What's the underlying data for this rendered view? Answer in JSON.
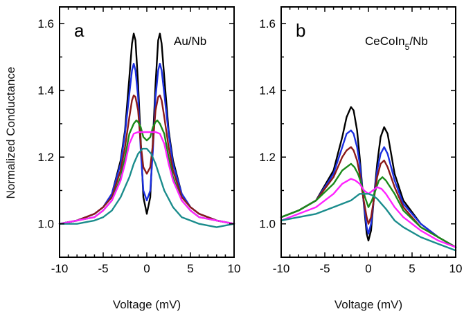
{
  "figure": {
    "ylabel": "Normalized Conductance"
  },
  "chart_data": [
    {
      "type": "line",
      "panel_letter": "a",
      "label_main": "Au/Nb",
      "label_sub": "",
      "label_tail": "",
      "xlabel": "Voltage (mV)",
      "ylabel": "Normalized Conductance",
      "xlim": [
        -10,
        10
      ],
      "ylim": [
        0.9,
        1.65
      ],
      "xticks": [
        -10,
        -5,
        0,
        5,
        10
      ],
      "yticks": [
        1.0,
        1.2,
        1.4,
        1.6
      ],
      "grid": false,
      "series": [
        {
          "color": "#000000",
          "x": [
            -10,
            -8,
            -6,
            -5,
            -4,
            -3,
            -2.5,
            -2,
            -1.7,
            -1.5,
            -1.3,
            -1,
            -0.7,
            -0.4,
            0,
            0.4,
            0.7,
            1,
            1.3,
            1.5,
            1.7,
            2,
            2.5,
            3,
            4,
            5,
            6,
            8,
            10
          ],
          "y": [
            1.0,
            1.01,
            1.03,
            1.05,
            1.09,
            1.19,
            1.28,
            1.44,
            1.54,
            1.57,
            1.55,
            1.42,
            1.25,
            1.08,
            1.03,
            1.08,
            1.25,
            1.42,
            1.55,
            1.57,
            1.54,
            1.44,
            1.28,
            1.19,
            1.09,
            1.05,
            1.03,
            1.01,
            1.0
          ]
        },
        {
          "color": "#1a2ee0",
          "x": [
            -10,
            -8,
            -6,
            -5,
            -4,
            -3,
            -2.5,
            -2,
            -1.7,
            -1.5,
            -1.3,
            -1,
            -0.7,
            -0.4,
            0,
            0.4,
            0.7,
            1,
            1.3,
            1.5,
            1.7,
            2,
            2.5,
            3,
            4,
            5,
            6,
            8,
            10
          ],
          "y": [
            1.0,
            1.01,
            1.03,
            1.05,
            1.09,
            1.18,
            1.27,
            1.39,
            1.46,
            1.48,
            1.46,
            1.38,
            1.22,
            1.1,
            1.07,
            1.1,
            1.22,
            1.38,
            1.46,
            1.48,
            1.46,
            1.39,
            1.27,
            1.18,
            1.09,
            1.05,
            1.03,
            1.01,
            1.0
          ]
        },
        {
          "color": "#8b1a1a",
          "x": [
            -10,
            -8,
            -6,
            -5,
            -4,
            -3,
            -2.5,
            -2,
            -1.7,
            -1.5,
            -1.3,
            -1,
            -0.7,
            -0.4,
            0,
            0.4,
            0.7,
            1,
            1.3,
            1.5,
            1.7,
            2,
            2.5,
            3,
            4,
            5,
            6,
            8,
            10
          ],
          "y": [
            1.0,
            1.01,
            1.03,
            1.05,
            1.08,
            1.16,
            1.23,
            1.32,
            1.37,
            1.385,
            1.38,
            1.34,
            1.24,
            1.17,
            1.15,
            1.17,
            1.24,
            1.34,
            1.38,
            1.385,
            1.37,
            1.32,
            1.23,
            1.16,
            1.08,
            1.05,
            1.03,
            1.01,
            1.0
          ]
        },
        {
          "color": "#1a8a1a",
          "x": [
            -10,
            -8,
            -6,
            -5,
            -4,
            -3,
            -2.5,
            -2,
            -1.5,
            -1.2,
            -1,
            -0.7,
            -0.4,
            0,
            0.4,
            0.7,
            1,
            1.2,
            1.5,
            2,
            2.5,
            3,
            4,
            5,
            6,
            8,
            10
          ],
          "y": [
            1.0,
            1.01,
            1.02,
            1.04,
            1.07,
            1.14,
            1.2,
            1.27,
            1.3,
            1.31,
            1.305,
            1.29,
            1.26,
            1.25,
            1.26,
            1.29,
            1.305,
            1.31,
            1.3,
            1.27,
            1.2,
            1.14,
            1.07,
            1.04,
            1.02,
            1.01,
            1.0
          ]
        },
        {
          "color": "#ff22ff",
          "x": [
            -10,
            -8,
            -6,
            -5,
            -4,
            -3,
            -2.5,
            -2,
            -1.5,
            -1,
            -0.5,
            0,
            0.5,
            1,
            1.5,
            2,
            2.5,
            3,
            4,
            5,
            6,
            8,
            10
          ],
          "y": [
            1.0,
            1.01,
            1.02,
            1.04,
            1.07,
            1.13,
            1.18,
            1.24,
            1.27,
            1.275,
            1.275,
            1.275,
            1.275,
            1.275,
            1.27,
            1.24,
            1.18,
            1.13,
            1.07,
            1.04,
            1.02,
            1.01,
            1.0
          ]
        },
        {
          "color": "#1a8c8c",
          "x": [
            -10,
            -8,
            -6,
            -5,
            -4,
            -3,
            -2,
            -1.5,
            -1,
            -0.5,
            0,
            0.5,
            1,
            1.5,
            2,
            3,
            4,
            5,
            6,
            8,
            10
          ],
          "y": [
            1.0,
            1.0,
            1.01,
            1.02,
            1.04,
            1.08,
            1.14,
            1.18,
            1.21,
            1.225,
            1.225,
            1.21,
            1.18,
            1.14,
            1.1,
            1.05,
            1.02,
            1.01,
            1.0,
            0.99,
            1.0
          ]
        }
      ]
    },
    {
      "type": "line",
      "panel_letter": "b",
      "label_main": "CeCoIn",
      "label_sub": "5",
      "label_tail": "/Nb",
      "xlabel": "Voltage (mV)",
      "ylabel": "",
      "xlim": [
        -10,
        10
      ],
      "ylim": [
        0.9,
        1.65
      ],
      "xticks": [
        -10,
        -5,
        0,
        5,
        10
      ],
      "yticks": [
        1.0,
        1.2,
        1.4,
        1.6
      ],
      "grid": false,
      "series": [
        {
          "color": "#000000",
          "x": [
            -10,
            -8,
            -6,
            -4,
            -3,
            -2.5,
            -2,
            -1.7,
            -1.3,
            -1,
            -0.6,
            -0.2,
            0,
            0.3,
            0.6,
            1,
            1.4,
            1.8,
            2.2,
            2.6,
            3,
            4,
            6,
            8,
            10
          ],
          "y": [
            1.02,
            1.04,
            1.07,
            1.16,
            1.26,
            1.32,
            1.35,
            1.34,
            1.28,
            1.2,
            1.08,
            0.97,
            0.95,
            0.98,
            1.07,
            1.18,
            1.26,
            1.29,
            1.27,
            1.21,
            1.15,
            1.07,
            1.0,
            0.96,
            0.93
          ]
        },
        {
          "color": "#1a2ee0",
          "x": [
            -10,
            -8,
            -6,
            -4,
            -3,
            -2.5,
            -2,
            -1.7,
            -1.3,
            -1,
            -0.6,
            -0.2,
            0,
            0.3,
            0.6,
            1,
            1.4,
            1.8,
            2.2,
            2.6,
            3,
            4,
            6,
            8,
            10
          ],
          "y": [
            1.02,
            1.04,
            1.07,
            1.15,
            1.23,
            1.27,
            1.28,
            1.27,
            1.23,
            1.18,
            1.08,
            0.99,
            0.97,
            1.0,
            1.07,
            1.16,
            1.21,
            1.23,
            1.21,
            1.17,
            1.13,
            1.06,
            1.0,
            0.96,
            0.93
          ]
        },
        {
          "color": "#8b1a1a",
          "x": [
            -10,
            -8,
            -6,
            -4,
            -3,
            -2.5,
            -2,
            -1.7,
            -1.3,
            -1,
            -0.6,
            -0.2,
            0,
            0.3,
            0.6,
            1,
            1.4,
            1.8,
            2.2,
            2.6,
            3,
            4,
            6,
            8,
            10
          ],
          "y": [
            1.02,
            1.04,
            1.07,
            1.14,
            1.2,
            1.22,
            1.23,
            1.22,
            1.19,
            1.15,
            1.08,
            1.02,
            1.0,
            1.02,
            1.07,
            1.14,
            1.18,
            1.19,
            1.17,
            1.14,
            1.11,
            1.05,
            0.99,
            0.96,
            0.93
          ]
        },
        {
          "color": "#1a8a1a",
          "x": [
            -10,
            -8,
            -6,
            -4,
            -3,
            -2.5,
            -2,
            -1.6,
            -1.2,
            -0.8,
            -0.4,
            0,
            0.4,
            0.8,
            1.2,
            1.6,
            2,
            2.5,
            3,
            4,
            6,
            8,
            10
          ],
          "y": [
            1.02,
            1.04,
            1.07,
            1.12,
            1.16,
            1.17,
            1.18,
            1.17,
            1.15,
            1.12,
            1.08,
            1.05,
            1.07,
            1.1,
            1.13,
            1.14,
            1.13,
            1.11,
            1.09,
            1.04,
            0.99,
            0.96,
            0.93
          ]
        },
        {
          "color": "#ff22ff",
          "x": [
            -10,
            -8,
            -6,
            -4,
            -3,
            -2,
            -1.5,
            -1,
            -0.5,
            0,
            0.5,
            1,
            1.5,
            2,
            2.5,
            3,
            4,
            6,
            8,
            10
          ],
          "y": [
            1.01,
            1.03,
            1.05,
            1.09,
            1.12,
            1.135,
            1.13,
            1.12,
            1.1,
            1.09,
            1.1,
            1.11,
            1.105,
            1.09,
            1.07,
            1.05,
            1.02,
            0.98,
            0.95,
            0.93
          ]
        },
        {
          "color": "#1a8c8c",
          "x": [
            -10,
            -8,
            -6,
            -4,
            -3,
            -2,
            -1.5,
            -1,
            -0.5,
            0,
            0.5,
            1,
            1.5,
            2,
            3,
            4,
            6,
            8,
            10
          ],
          "y": [
            1.01,
            1.02,
            1.03,
            1.05,
            1.06,
            1.07,
            1.08,
            1.09,
            1.09,
            1.09,
            1.085,
            1.075,
            1.06,
            1.045,
            1.01,
            0.99,
            0.96,
            0.94,
            0.92
          ]
        }
      ]
    }
  ]
}
